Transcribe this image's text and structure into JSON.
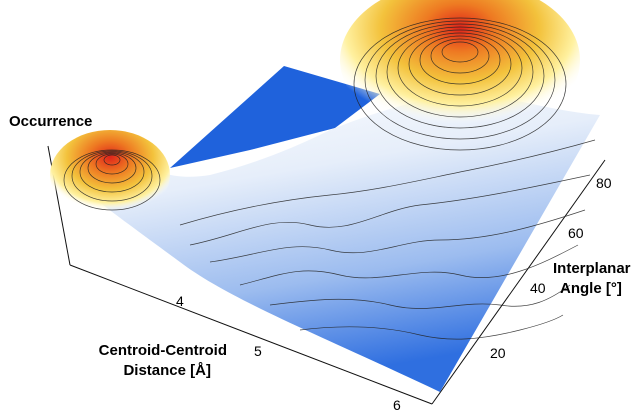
{
  "chart_data": {
    "type": "surface3d",
    "title": "",
    "zlabel": "Occurrence",
    "xlabel_lines": [
      "Centroid-Centroid",
      "Distance [Å]"
    ],
    "ylabel_lines": [
      "Interplanar",
      "Angle [°]"
    ],
    "x_ticks": [
      "4",
      "5",
      "6"
    ],
    "y_ticks": [
      "20",
      "40",
      "60",
      "80"
    ],
    "colormap": [
      "#2f6fe0",
      "#8fb4ef",
      "#eef3fb",
      "#ffffff",
      "#fff6b0",
      "#f3c23c",
      "#ee7a22",
      "#e0241a"
    ],
    "peaks": [
      {
        "label": "low-distance peak",
        "distance": 3.6,
        "angle": 88,
        "relative_height": 0.55
      },
      {
        "label": "main peak",
        "distance": 5.9,
        "angle": 88,
        "relative_height": 1.0
      }
    ]
  }
}
